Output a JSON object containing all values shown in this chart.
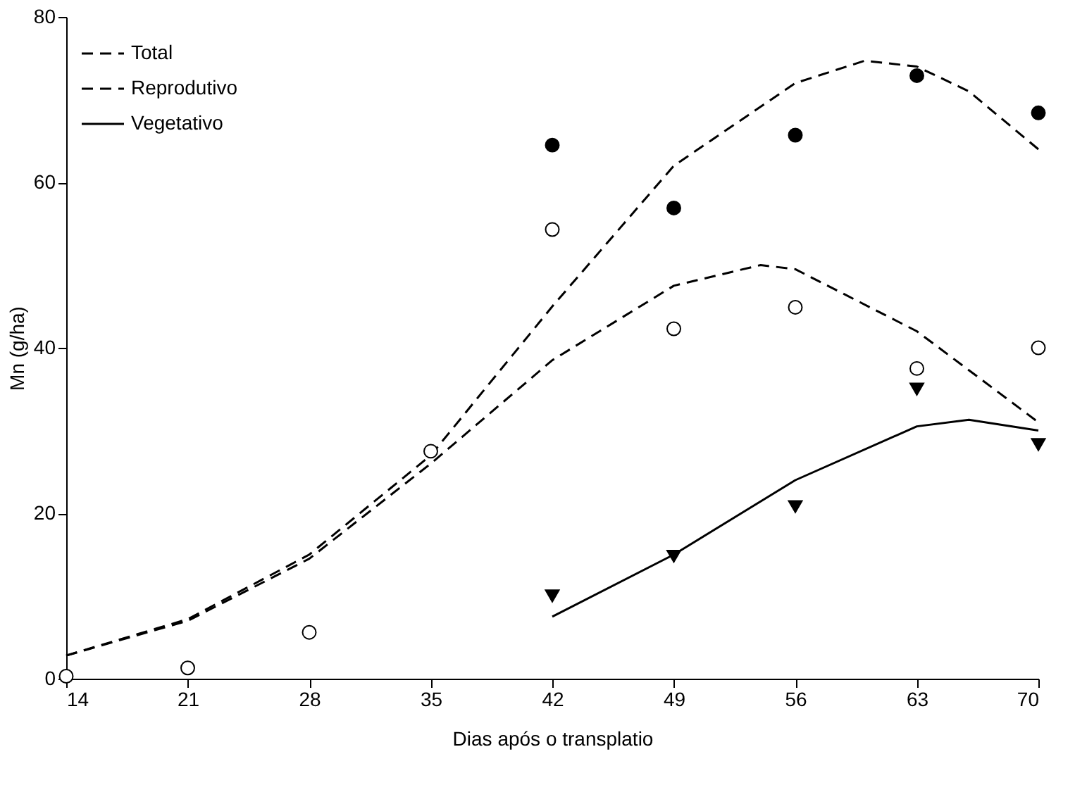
{
  "chart_data": {
    "type": "line",
    "xlabel": "Dias após o transplatio",
    "ylabel": "Mn (g/ha)",
    "xlim": [
      14,
      70
    ],
    "xticks": [
      14,
      21,
      28,
      35,
      42,
      49,
      56,
      63,
      70
    ],
    "ylim": [
      0,
      80
    ],
    "yticks": [
      0,
      20,
      40,
      60,
      80
    ],
    "grid": false,
    "legend": "top left",
    "series": [
      {
        "name": "Total",
        "line_style": "dashed",
        "marker": "none",
        "color": "#000000",
        "x": [
          14,
          21,
          28,
          35,
          42,
          49,
          56,
          60,
          63,
          66,
          70
        ],
        "values": [
          2.8,
          7.2,
          15,
          27,
          45,
          62,
          72,
          74.7,
          74,
          71,
          64
        ]
      },
      {
        "name": "Reprodutivo",
        "line_style": "dashed",
        "marker": "none",
        "color": "#000000",
        "x": [
          14,
          21,
          28,
          35,
          42,
          49,
          54,
          56,
          63,
          70
        ],
        "values": [
          2.8,
          7,
          14.5,
          26,
          38.5,
          47.5,
          50,
          49.5,
          42,
          31
        ]
      },
      {
        "name": "Vegetativo",
        "line_style": "solid",
        "marker": "none",
        "color": "#000000",
        "x": [
          42,
          49,
          56,
          63,
          66,
          70
        ],
        "values": [
          7.5,
          15,
          24,
          30.5,
          31.3,
          30
        ]
      },
      {
        "type": "scatter",
        "marker": "circle",
        "color": "#000000",
        "x": [
          42,
          49,
          56,
          63,
          70
        ],
        "values": [
          64.5,
          56.9,
          65.7,
          72.9,
          68.4
        ]
      },
      {
        "type": "scatter",
        "marker": "circle",
        "color": "#ffffff",
        "x": [
          14,
          21,
          28,
          35,
          42,
          49,
          56,
          63,
          70
        ],
        "values": [
          0.3,
          1.3,
          5.6,
          27.5,
          54.3,
          42.3,
          44.9,
          37.5,
          40
        ]
      },
      {
        "type": "scatter",
        "marker": "triangle",
        "color": "#000000",
        "x": [
          42,
          49,
          56,
          63,
          70
        ],
        "values": [
          10,
          14.8,
          20.8,
          35,
          28.3
        ]
      }
    ]
  }
}
